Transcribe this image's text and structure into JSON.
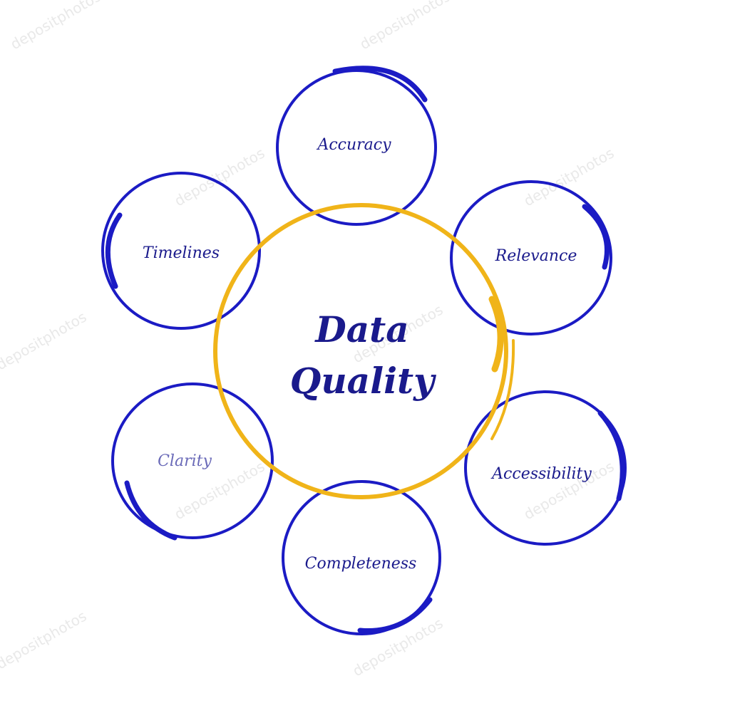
{
  "diagram": {
    "hub": {
      "line1": "Data",
      "line2": "Quality"
    },
    "satellites": [
      {
        "label": "Accuracy",
        "name": "accuracy"
      },
      {
        "label": "Relevance",
        "name": "relevance"
      },
      {
        "label": "Accessibility",
        "name": "accessibility"
      },
      {
        "label": "Completeness",
        "name": "completeness"
      },
      {
        "label": "Clarity",
        "name": "clarity"
      },
      {
        "label": "Timelines",
        "name": "timelines"
      }
    ]
  },
  "watermark": {
    "text": "depositphotos"
  },
  "colors": {
    "ring": "#1b1bc4",
    "hub_ring": "#f0b419",
    "text": "#1a1a8c",
    "clarity_text": "#6a6ab8",
    "watermark": "#e9e9e9"
  }
}
